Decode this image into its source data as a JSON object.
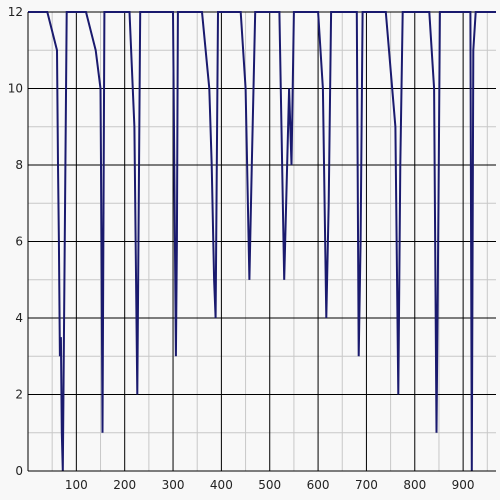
{
  "chart_data": {
    "type": "line",
    "title": "",
    "xlabel": "",
    "ylabel": "",
    "xlim": [
      0,
      968
    ],
    "ylim": [
      0,
      12
    ],
    "x_ticks": [
      100,
      200,
      300,
      400,
      500,
      600,
      700,
      800,
      900
    ],
    "x_tick_labels": [
      "100",
      "200",
      "300",
      "400",
      "500",
      "600",
      "700",
      "800",
      "900"
    ],
    "y_ticks": [
      0,
      2,
      4,
      6,
      8,
      10,
      12
    ],
    "y_tick_labels": [
      "0",
      "2",
      "4",
      "6",
      "8",
      "10",
      "12"
    ],
    "grid": {
      "major": true,
      "minor": true,
      "x_minor_step": 50,
      "y_minor_step": 1
    },
    "legend": "none",
    "colors": {
      "line": "#1a1a6e",
      "major_grid": "#000000",
      "minor_grid": "#c8c8c8",
      "background": "#f8f8f8"
    },
    "series": [
      {
        "x": [
          0,
          40,
          60,
          62,
          64,
          66,
          68,
          70,
          72,
          80,
          120,
          140,
          150,
          152,
          154,
          158,
          170,
          210,
          220,
          226,
          232,
          234,
          236,
          242,
          280,
          300,
          306,
          308,
          310,
          318,
          360,
          375,
          380,
          385,
          388,
          393,
          402,
          440,
          450,
          458,
          463,
          470,
          480,
          520,
          530,
          540,
          545,
          550,
          558,
          600,
          610,
          617,
          622,
          627,
          634,
          680,
          684,
          688,
          692,
          700,
          740,
          760,
          766,
          770,
          775,
          782,
          830,
          840,
          845,
          849,
          852,
          860,
          900,
          915,
          918,
          921,
          926,
          930,
          940,
          968
        ],
        "y": [
          12,
          12,
          11,
          8,
          6,
          3,
          3.5,
          1,
          0,
          12,
          12,
          11,
          10,
          6,
          1,
          12,
          12,
          12,
          9,
          2,
          12,
          12,
          12,
          12,
          12,
          12,
          3,
          6,
          12,
          12,
          12,
          10,
          8,
          5,
          4,
          12,
          12,
          12,
          10,
          5,
          8,
          12,
          12,
          12,
          5,
          10,
          8,
          12,
          12,
          12,
          10,
          4,
          7,
          12,
          12,
          12,
          3,
          6,
          12,
          12,
          12,
          9,
          2,
          8,
          12,
          12,
          12,
          10,
          1,
          7,
          12,
          12,
          12,
          12,
          0,
          11,
          12,
          12,
          12,
          12
        ]
      }
    ]
  }
}
